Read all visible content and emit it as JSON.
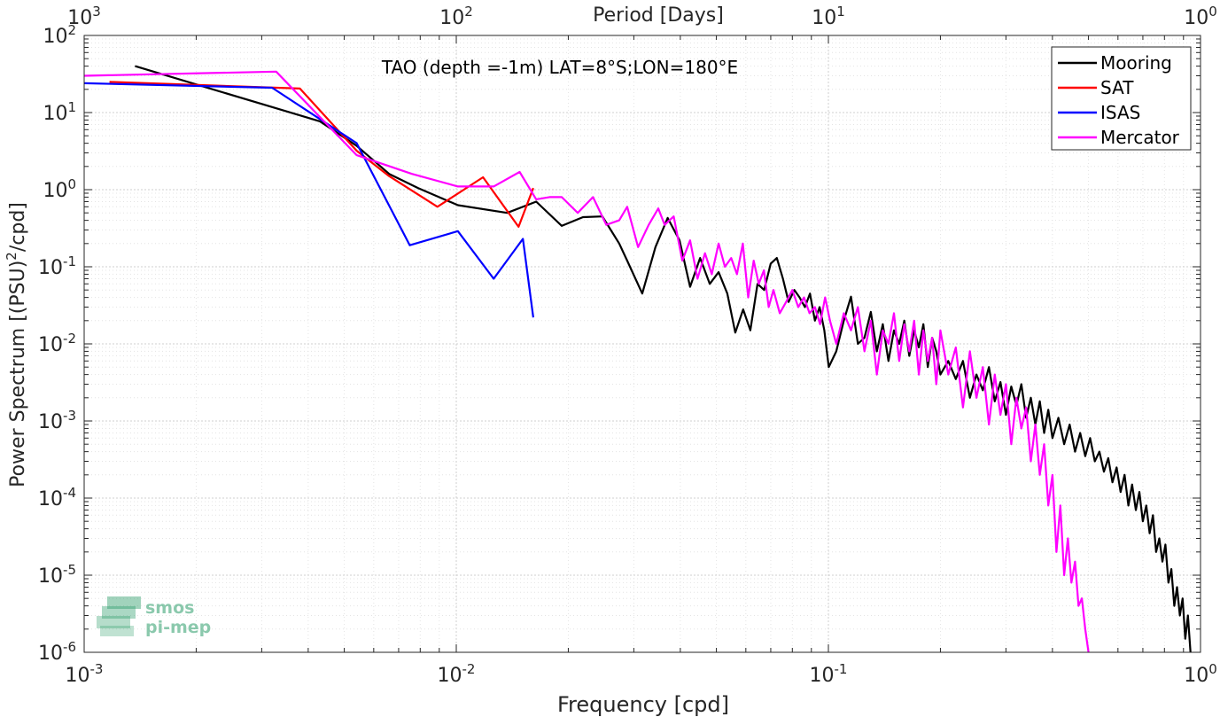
{
  "chart_data": {
    "type": "line",
    "title": "TAO (depth =-1m) LAT=8°S;LON=180°E",
    "xlabel": "Frequency [cpd]",
    "ylabel": "Power Spectrum [(PSU)",
    "ylabel_sup": "2",
    "ylabel_tail": "/cpd]",
    "top_xlabel": "Period [Days]",
    "x_scale": "log",
    "y_scale": "log",
    "xlim": [
      0.001,
      1
    ],
    "ylim": [
      1e-06,
      100
    ],
    "grid": true,
    "legend_position": "top-right",
    "x_ticks": [
      {
        "value": 0.001,
        "base": "10",
        "exp": "-3"
      },
      {
        "value": 0.01,
        "base": "10",
        "exp": "-2"
      },
      {
        "value": 0.1,
        "base": "10",
        "exp": "-1"
      },
      {
        "value": 1,
        "base": "10",
        "exp": "0"
      }
    ],
    "top_ticks": [
      {
        "value": 0.001,
        "base": "10",
        "exp": "3"
      },
      {
        "value": 0.01,
        "base": "10",
        "exp": "2"
      },
      {
        "value": 0.1,
        "base": "10",
        "exp": "1"
      },
      {
        "value": 1,
        "base": "10",
        "exp": "0"
      }
    ],
    "y_ticks": [
      {
        "value": 100,
        "base": "10",
        "exp": "2"
      },
      {
        "value": 10,
        "base": "10",
        "exp": "1"
      },
      {
        "value": 1,
        "base": "10",
        "exp": "0"
      },
      {
        "value": 0.1,
        "base": "10",
        "exp": "-1"
      },
      {
        "value": 0.01,
        "base": "10",
        "exp": "-2"
      },
      {
        "value": 0.001,
        "base": "10",
        "exp": "-3"
      },
      {
        "value": 0.0001,
        "base": "10",
        "exp": "-4"
      },
      {
        "value": 1e-05,
        "base": "10",
        "exp": "-5"
      },
      {
        "value": 1e-06,
        "base": "10",
        "exp": "-6"
      }
    ],
    "series": [
      {
        "name": "Mooring",
        "color": "#000000",
        "x": [
          0.00137,
          0.0043,
          0.0054,
          0.0066,
          0.0079,
          0.0101,
          0.0137,
          0.0164,
          0.0192,
          0.0219,
          0.0247,
          0.0274,
          0.0288,
          0.0316,
          0.0343,
          0.037,
          0.0398,
          0.0425,
          0.0452,
          0.048,
          0.0507,
          0.0535,
          0.0562,
          0.059,
          0.0617,
          0.0645,
          0.0672,
          0.07,
          0.0727,
          0.0755,
          0.0782,
          0.081,
          0.0837,
          0.0865,
          0.0892,
          0.092,
          0.0947,
          0.0975,
          0.1002,
          0.105,
          0.11,
          0.115,
          0.12,
          0.125,
          0.13,
          0.135,
          0.14,
          0.145,
          0.15,
          0.155,
          0.16,
          0.165,
          0.17,
          0.175,
          0.18,
          0.185,
          0.19,
          0.195,
          0.2,
          0.21,
          0.22,
          0.23,
          0.24,
          0.25,
          0.26,
          0.27,
          0.28,
          0.29,
          0.3,
          0.31,
          0.32,
          0.33,
          0.34,
          0.35,
          0.36,
          0.37,
          0.38,
          0.39,
          0.4,
          0.415,
          0.43,
          0.445,
          0.46,
          0.475,
          0.49,
          0.505,
          0.52,
          0.535,
          0.55,
          0.565,
          0.58,
          0.595,
          0.61,
          0.625,
          0.64,
          0.655,
          0.67,
          0.685,
          0.7,
          0.715,
          0.73,
          0.745,
          0.76,
          0.775,
          0.79,
          0.805,
          0.82,
          0.835,
          0.85,
          0.865,
          0.88,
          0.895,
          0.91,
          0.925,
          0.94
        ],
        "y": [
          40,
          7.7,
          3.7,
          1.6,
          1.05,
          0.63,
          0.5,
          0.7,
          0.34,
          0.44,
          0.45,
          0.2,
          0.12,
          0.045,
          0.18,
          0.43,
          0.22,
          0.055,
          0.13,
          0.06,
          0.085,
          0.045,
          0.014,
          0.028,
          0.015,
          0.06,
          0.05,
          0.11,
          0.13,
          0.07,
          0.035,
          0.05,
          0.04,
          0.03,
          0.045,
          0.02,
          0.03,
          0.015,
          0.005,
          0.008,
          0.02,
          0.041,
          0.01,
          0.012,
          0.026,
          0.008,
          0.018,
          0.006,
          0.015,
          0.01,
          0.02,
          0.007,
          0.015,
          0.009,
          0.018,
          0.005,
          0.012,
          0.008,
          0.004,
          0.006,
          0.0035,
          0.006,
          0.002,
          0.004,
          0.0025,
          0.005,
          0.0018,
          0.0032,
          0.0012,
          0.0028,
          0.0016,
          0.003,
          0.0011,
          0.002,
          0.0009,
          0.0018,
          0.0007,
          0.0014,
          0.0006,
          0.0011,
          0.0005,
          0.0009,
          0.0004,
          0.0007,
          0.00035,
          0.0006,
          0.0003,
          0.0004,
          0.00022,
          0.00033,
          0.00016,
          0.00025,
          0.00012,
          0.0002,
          8e-05,
          0.00015,
          7e-05,
          0.00012,
          5e-05,
          8e-05,
          3.5e-05,
          6e-05,
          2e-05,
          3e-05,
          1.5e-05,
          2.5e-05,
          8e-06,
          1.2e-05,
          4e-06,
          7e-06,
          3e-06,
          5e-06,
          1.5e-06,
          3e-06,
          1e-06
        ]
      },
      {
        "name": "SAT",
        "color": "#ff0000",
        "x": [
          0.00117,
          0.0038,
          0.0054,
          0.0066,
          0.0089,
          0.0118,
          0.0147,
          0.0161
        ],
        "y": [
          25,
          20.5,
          3.2,
          1.5,
          0.6,
          1.45,
          0.33,
          1.05
        ]
      },
      {
        "name": "ISAS",
        "color": "#0000ff",
        "x": [
          0.001,
          0.0032,
          0.0054,
          0.0075,
          0.0101,
          0.0126,
          0.0151,
          0.0161
        ],
        "y": [
          24,
          21,
          4.0,
          0.19,
          0.29,
          0.07,
          0.23,
          0.022
        ]
      },
      {
        "name": "Mercator",
        "color": "#ff00ff",
        "x": [
          0.001,
          0.00328,
          0.0054,
          0.0076,
          0.0101,
          0.0126,
          0.0148,
          0.0164,
          0.0178,
          0.0192,
          0.0212,
          0.0233,
          0.0253,
          0.0274,
          0.0288,
          0.0308,
          0.0329,
          0.0349,
          0.0363,
          0.0384,
          0.0405,
          0.0425,
          0.0445,
          0.0466,
          0.0486,
          0.0507,
          0.0527,
          0.0548,
          0.0568,
          0.0589,
          0.0609,
          0.063,
          0.065,
          0.0671,
          0.0691,
          0.0712,
          0.074,
          0.077,
          0.08,
          0.083,
          0.086,
          0.089,
          0.092,
          0.095,
          0.098,
          0.101,
          0.105,
          0.11,
          0.115,
          0.12,
          0.125,
          0.13,
          0.135,
          0.14,
          0.145,
          0.15,
          0.155,
          0.16,
          0.165,
          0.17,
          0.175,
          0.18,
          0.185,
          0.19,
          0.195,
          0.2,
          0.21,
          0.22,
          0.23,
          0.24,
          0.25,
          0.26,
          0.27,
          0.28,
          0.29,
          0.3,
          0.31,
          0.32,
          0.33,
          0.34,
          0.35,
          0.36,
          0.37,
          0.38,
          0.39,
          0.4,
          0.41,
          0.42,
          0.43,
          0.44,
          0.45,
          0.46,
          0.47,
          0.48,
          0.49,
          0.5
        ],
        "y": [
          30,
          34,
          2.8,
          1.6,
          1.1,
          1.1,
          1.7,
          0.75,
          0.8,
          0.8,
          0.5,
          0.8,
          0.35,
          0.4,
          0.6,
          0.18,
          0.35,
          0.57,
          0.35,
          0.45,
          0.12,
          0.22,
          0.07,
          0.15,
          0.08,
          0.2,
          0.1,
          0.13,
          0.08,
          0.2,
          0.04,
          0.12,
          0.06,
          0.09,
          0.03,
          0.05,
          0.025,
          0.035,
          0.05,
          0.03,
          0.04,
          0.025,
          0.03,
          0.018,
          0.04,
          0.02,
          0.01,
          0.025,
          0.015,
          0.03,
          0.008,
          0.02,
          0.004,
          0.015,
          0.01,
          0.025,
          0.006,
          0.018,
          0.008,
          0.02,
          0.004,
          0.015,
          0.006,
          0.012,
          0.003,
          0.015,
          0.004,
          0.009,
          0.0015,
          0.008,
          0.002,
          0.005,
          0.0009,
          0.004,
          0.0012,
          0.003,
          0.0005,
          0.002,
          0.0008,
          0.0015,
          0.0003,
          0.0009,
          0.0002,
          0.0005,
          8e-05,
          0.0002,
          2e-05,
          8e-05,
          1e-05,
          3e-05,
          8e-06,
          1.5e-05,
          4e-06,
          5e-06,
          2e-06,
          1e-06
        ]
      }
    ]
  },
  "watermark": {
    "line1": "smos",
    "line2": "pi-mep",
    "color": "#2e9e6b"
  }
}
